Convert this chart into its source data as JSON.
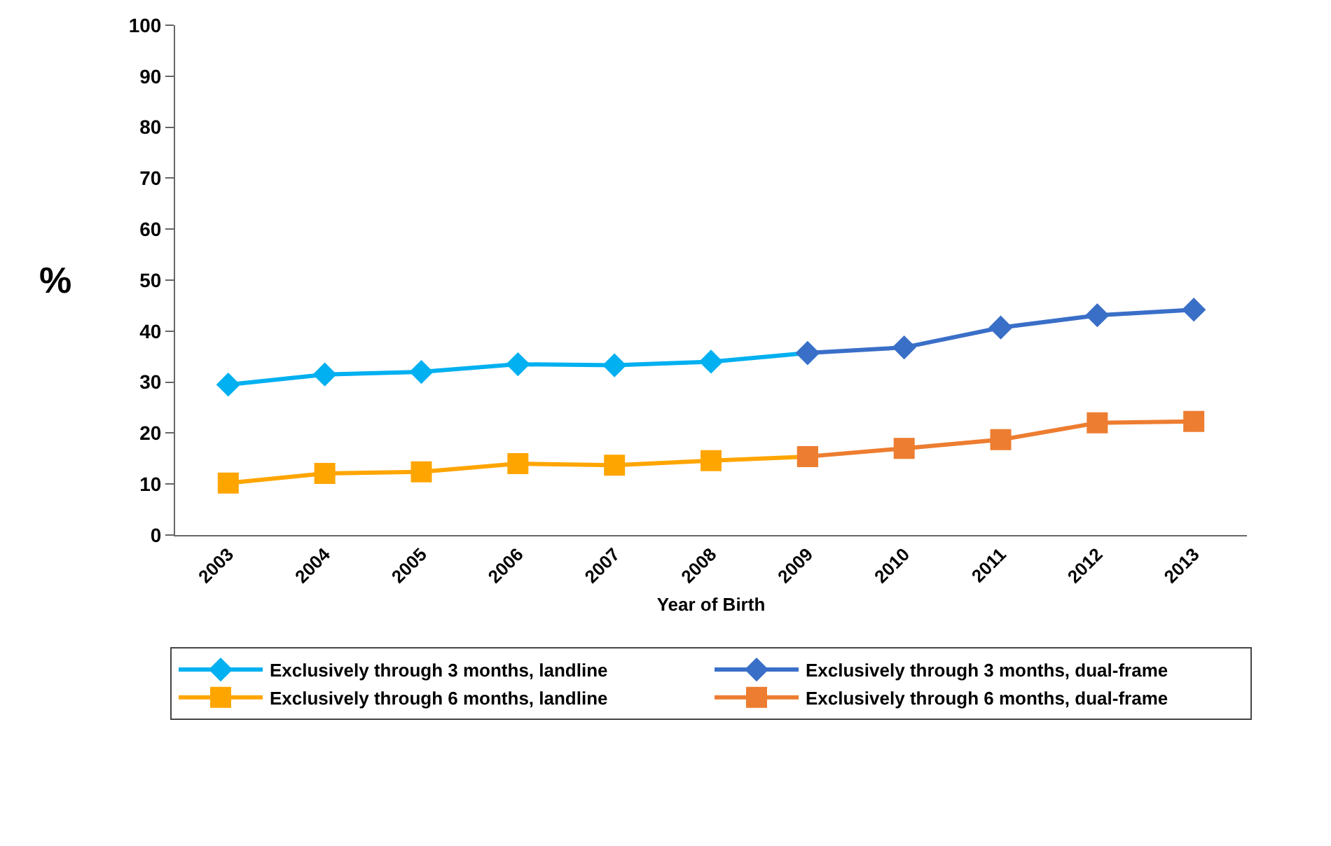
{
  "chart_data": {
    "type": "line",
    "xlabel": "Year of Birth",
    "ylabel": "%",
    "categories": [
      "2003",
      "2004",
      "2005",
      "2006",
      "2007",
      "2008",
      "2009",
      "2010",
      "2011",
      "2012",
      "2013"
    ],
    "series": [
      {
        "name": "Exclusively through 3 months, landline",
        "color": "#00b0f0",
        "marker": "diamond",
        "values": [
          29.5,
          31.5,
          32,
          33.5,
          33.3,
          34,
          35.7,
          null,
          null,
          null,
          null
        ]
      },
      {
        "name": "Exclusively through 3 months, dual-frame",
        "color": "#3a6fc8",
        "marker": "diamond",
        "values": [
          null,
          null,
          null,
          null,
          null,
          null,
          35.7,
          36.8,
          40.7,
          43.1,
          44.2
        ]
      },
      {
        "name": "Exclusively through 6 months, landline",
        "color": "#ffa500",
        "marker": "square",
        "values": [
          10.2,
          12.1,
          12.4,
          14,
          13.7,
          14.6,
          15.4,
          null,
          null,
          null,
          null
        ]
      },
      {
        "name": "Exclusively through 6 months, dual-frame",
        "color": "#ed7d31",
        "marker": "square",
        "values": [
          null,
          null,
          null,
          null,
          null,
          null,
          15.4,
          17,
          18.7,
          22,
          22.3
        ]
      }
    ],
    "ylim": [
      0,
      100
    ],
    "yticks": [
      0,
      10,
      20,
      30,
      40,
      50,
      60,
      70,
      80,
      90,
      100
    ],
    "grid": false,
    "legend": "bottom"
  }
}
